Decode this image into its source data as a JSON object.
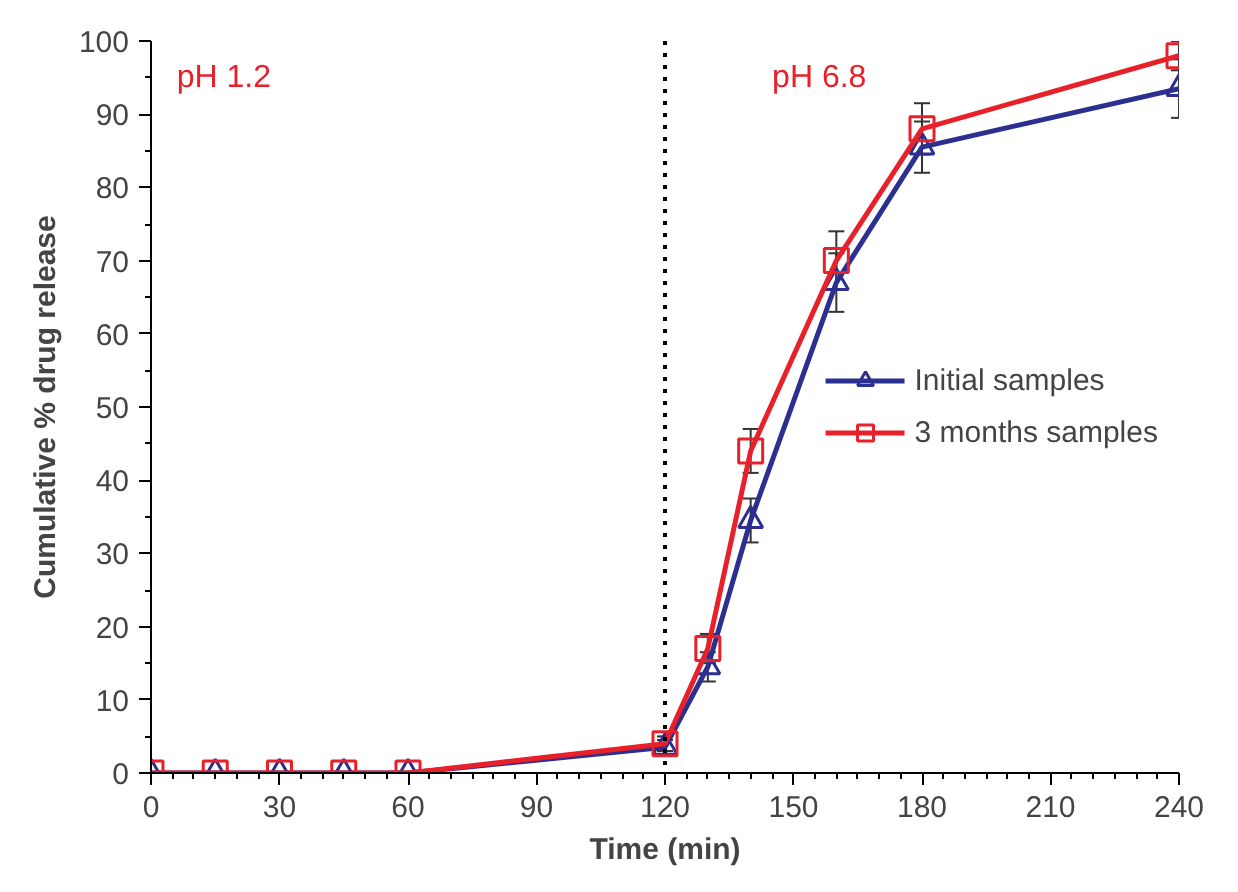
{
  "chart_data": {
    "type": "line",
    "xlabel": "Time (min)",
    "ylabel": "Cumulative % drug release",
    "x": [
      0,
      15,
      30,
      45,
      60,
      120,
      130,
      140,
      160,
      180,
      240
    ],
    "series": [
      {
        "name": "Initial samples",
        "color": "#2b2f8f",
        "marker": "triangle",
        "values": [
          0,
          0,
          0,
          0,
          0,
          3.5,
          14.5,
          34.5,
          67,
          85.5,
          93.5
        ],
        "errors": [
          null,
          null,
          null,
          null,
          null,
          1,
          2,
          3,
          4,
          3.5,
          4
        ]
      },
      {
        "name": "3 months samples",
        "color": "#e8202a",
        "marker": "square",
        "values": [
          0,
          0,
          0,
          0,
          0,
          4,
          17,
          44,
          70,
          88,
          98
        ],
        "errors": [
          null,
          null,
          null,
          null,
          null,
          1,
          2,
          3,
          4,
          3.5,
          2
        ]
      }
    ],
    "xlim": [
      0,
      240
    ],
    "xticks": [
      0,
      30,
      60,
      90,
      120,
      150,
      180,
      210,
      240
    ],
    "ylim": [
      0,
      100
    ],
    "yticks": [
      0,
      10,
      20,
      30,
      40,
      50,
      60,
      70,
      80,
      90,
      100
    ],
    "ref_lines": [
      {
        "axis": "x",
        "value": 120,
        "line_style": "dotted",
        "color": "#000000"
      }
    ],
    "annotations": [
      "pH 1.2",
      "pH 6.8"
    ],
    "legend": "right",
    "grid": false,
    "line_style": "solid"
  }
}
